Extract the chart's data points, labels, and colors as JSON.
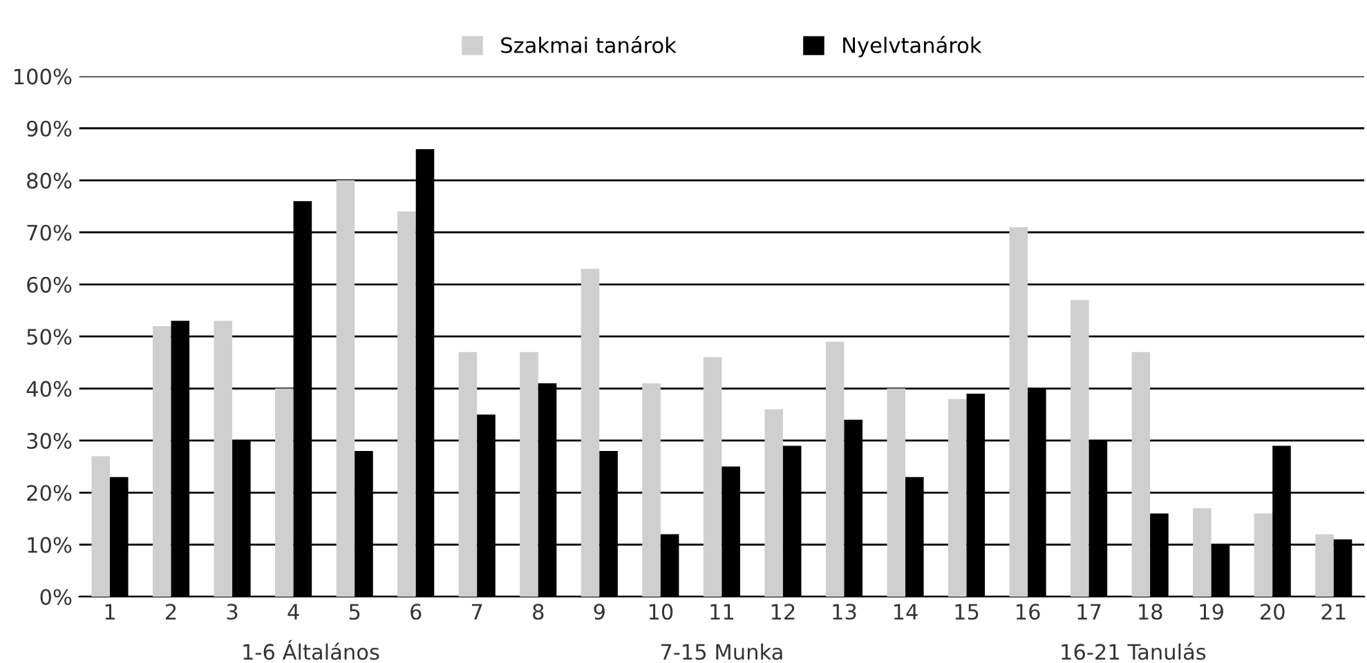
{
  "chart_data": {
    "type": "bar",
    "categories": [
      "1",
      "2",
      "3",
      "4",
      "5",
      "6",
      "7",
      "8",
      "9",
      "10",
      "11",
      "12",
      "13",
      "14",
      "15",
      "16",
      "17",
      "18",
      "19",
      "20",
      "21"
    ],
    "series": [
      {
        "name": "Szakmai tanárok",
        "color": "#cfcfcf",
        "values": [
          27,
          52,
          53,
          40,
          80,
          74,
          47,
          47,
          63,
          41,
          46,
          36,
          49,
          40,
          38,
          71,
          57,
          47,
          17,
          16,
          12
        ]
      },
      {
        "name": "Nyelvtanárok",
        "color": "#000000",
        "values": [
          23,
          53,
          30,
          76,
          28,
          86,
          35,
          41,
          28,
          12,
          25,
          29,
          34,
          23,
          39,
          40,
          30,
          16,
          10,
          29,
          11
        ]
      }
    ],
    "ylim": [
      0,
      100
    ],
    "yticks": [
      {
        "value": 0,
        "label": "0%"
      },
      {
        "value": 10,
        "label": "10%"
      },
      {
        "value": 20,
        "label": "20%"
      },
      {
        "value": 30,
        "label": "30%"
      },
      {
        "value": 40,
        "label": "40%"
      },
      {
        "value": 50,
        "label": "50%"
      },
      {
        "value": 60,
        "label": "60%"
      },
      {
        "value": 70,
        "label": "70%"
      },
      {
        "value": 80,
        "label": "80%"
      },
      {
        "value": 90,
        "label": "90%"
      },
      {
        "value": 100,
        "label": "100%"
      }
    ],
    "grid": "y",
    "legend": "top",
    "annotations": [
      "1-6 Általános",
      "7-15 Munka",
      "16-21 Tanulás"
    ]
  }
}
